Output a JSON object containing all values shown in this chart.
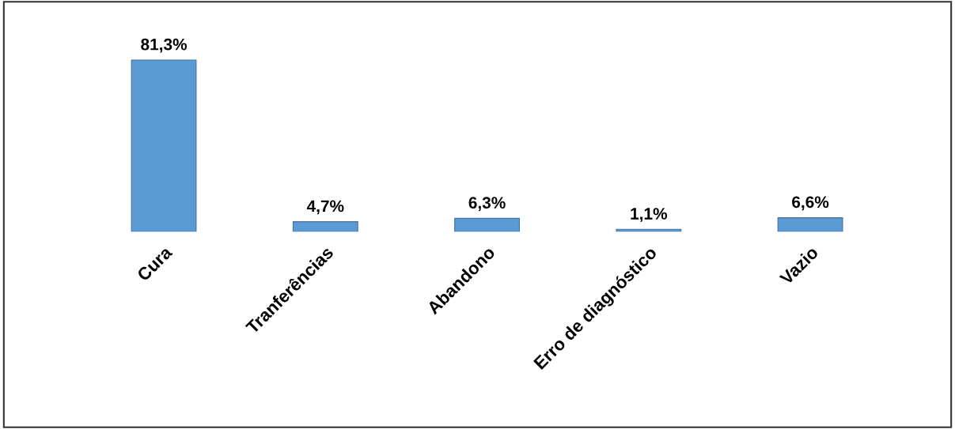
{
  "chart_data": {
    "type": "bar",
    "categories": [
      "Cura",
      "Tranferências",
      "Abandono",
      "Erro de diagnóstico",
      "Vazio"
    ],
    "values": [
      81.3,
      4.7,
      6.3,
      1.1,
      6.6
    ],
    "value_labels": [
      "81,3%",
      "4,7%",
      "6,3%",
      "1,1%",
      "6,6%"
    ],
    "color": "#5b9bd5",
    "grid": false,
    "legend": false
  }
}
